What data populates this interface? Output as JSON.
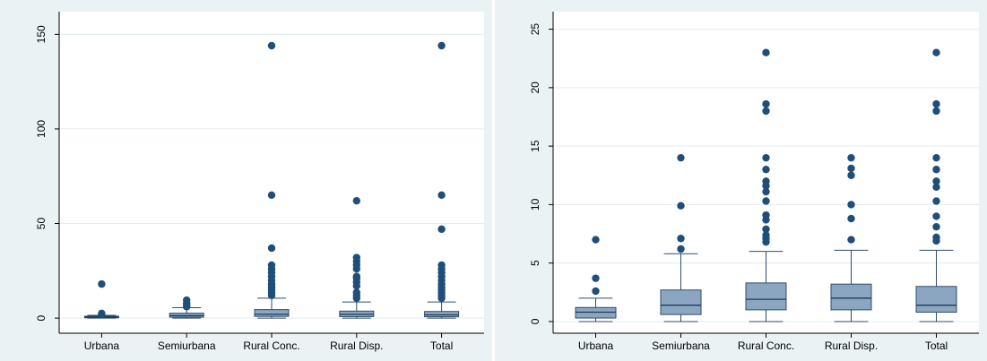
{
  "chart_data": [
    {
      "type": "box",
      "categories": [
        "Urbana",
        "Semiurbana",
        "Rural Conc.",
        "Rural Disp.",
        "Total"
      ],
      "yticks": [
        0,
        50,
        100,
        150
      ],
      "ylim": [
        -8,
        162
      ],
      "grid": true,
      "colors": {
        "box": "#8ba6c0",
        "box_stroke": "#2e4d6b",
        "median": "#1c3b5a",
        "outlier": "#1f4e79",
        "panel_bg": "#eaf2f3",
        "plot_bg": "#ffffff",
        "grid": "#e3ecee"
      },
      "boxes": [
        {
          "q1": 0.2,
          "median": 0.5,
          "q3": 1.0,
          "whisker_low": 0,
          "whisker_high": 1.5,
          "outliers": [
            2.0,
            2.5,
            18
          ]
        },
        {
          "q1": 0.5,
          "median": 1.3,
          "q3": 2.6,
          "whisker_low": 0,
          "whisker_high": 5.5,
          "outliers": [
            6,
            7,
            8,
            9.5
          ]
        },
        {
          "q1": 0.9,
          "median": 2.0,
          "q3": 4.5,
          "whisker_low": 0,
          "whisker_high": 10.5,
          "outliers": [
            12,
            13.5,
            15,
            16.5,
            18,
            20,
            22,
            24,
            26,
            28,
            37,
            65,
            144
          ]
        },
        {
          "q1": 0.8,
          "median": 2.0,
          "q3": 3.7,
          "whisker_low": 0,
          "whisker_high": 8.5,
          "outliers": [
            10.5,
            12,
            13.5,
            17,
            19,
            21,
            22,
            26,
            28,
            30,
            32,
            62
          ]
        },
        {
          "q1": 0.7,
          "median": 1.7,
          "q3": 3.5,
          "whisker_low": 0,
          "whisker_high": 8.5,
          "outliers": [
            10.5,
            12,
            13.5,
            15,
            16.5,
            18,
            20,
            22,
            24,
            26,
            28,
            47,
            65,
            144
          ]
        }
      ]
    },
    {
      "type": "box",
      "categories": [
        "Urbana",
        "Semiurbana",
        "Rural Conc.",
        "Rural Disp.",
        "Total"
      ],
      "yticks": [
        0,
        5,
        10,
        15,
        20,
        25
      ],
      "ylim": [
        -1,
        26.5
      ],
      "grid": true,
      "colors": {
        "box": "#8ba6c0",
        "box_stroke": "#2e4d6b",
        "median": "#1c3b5a",
        "outlier": "#1f4e79",
        "panel_bg": "#eaf2f3",
        "plot_bg": "#ffffff",
        "grid": "#e3ecee"
      },
      "boxes": [
        {
          "q1": 0.3,
          "median": 0.8,
          "q3": 1.2,
          "whisker_low": 0,
          "whisker_high": 2.0,
          "outliers": [
            2.6,
            3.7,
            7.0
          ]
        },
        {
          "q1": 0.6,
          "median": 1.4,
          "q3": 2.7,
          "whisker_low": 0,
          "whisker_high": 5.8,
          "outliers": [
            6.2,
            7.1,
            9.9,
            14.0
          ]
        },
        {
          "q1": 1.0,
          "median": 1.9,
          "q3": 3.3,
          "whisker_low": 0,
          "whisker_high": 6.0,
          "outliers": [
            6.8,
            7.1,
            7.4,
            7.9,
            8.7,
            9.1,
            10.3,
            11.1,
            11.6,
            12.0,
            13.0,
            14.0,
            18.0,
            18.6,
            23.0
          ]
        },
        {
          "q1": 1.0,
          "median": 2.0,
          "q3": 3.2,
          "whisker_low": 0,
          "whisker_high": 6.1,
          "outliers": [
            7.0,
            8.8,
            10.0,
            12.5,
            13.1,
            14.0
          ]
        },
        {
          "q1": 0.8,
          "median": 1.4,
          "q3": 3.0,
          "whisker_low": 0,
          "whisker_high": 6.1,
          "outliers": [
            6.9,
            7.2,
            8.1,
            9.0,
            10.3,
            11.5,
            12.0,
            13.0,
            14.0,
            18.0,
            18.6,
            23.0
          ]
        }
      ]
    }
  ]
}
